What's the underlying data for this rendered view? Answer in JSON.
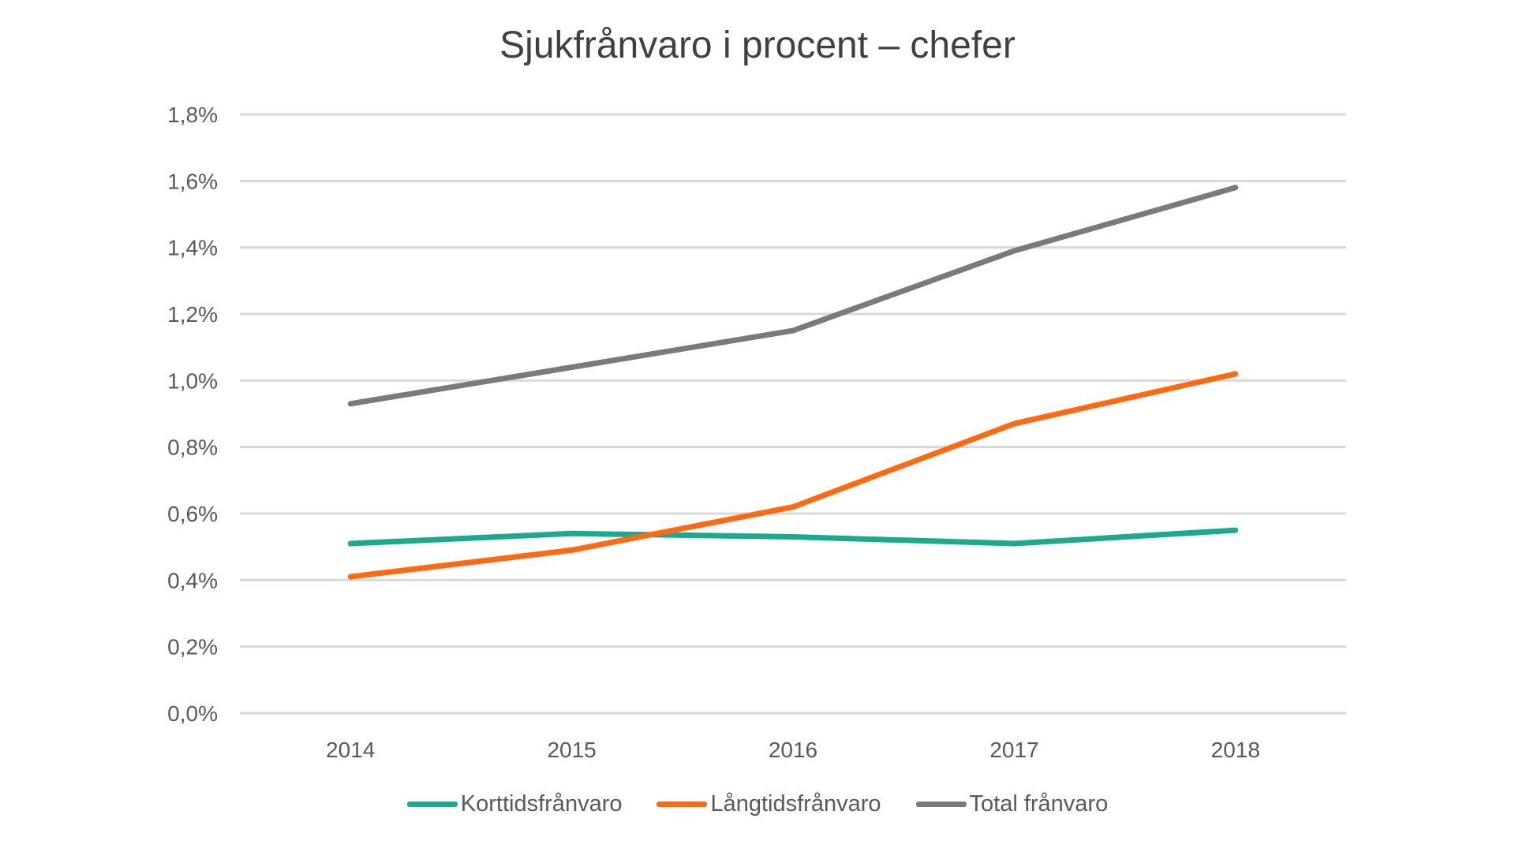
{
  "chart_data": {
    "type": "line",
    "title": "Sjukfrånvaro i procent – chefer",
    "xlabel": "",
    "ylabel": "",
    "categories": [
      "2014",
      "2015",
      "2016",
      "2017",
      "2018"
    ],
    "ylim": [
      0,
      1.8
    ],
    "yticks": [
      0,
      0.2,
      0.4,
      0.6,
      0.8,
      1.0,
      1.2,
      1.4,
      1.6,
      1.8
    ],
    "ytick_labels": [
      "0,0%",
      "0,2%",
      "0,4%",
      "0,6%",
      "0,8%",
      "1,0%",
      "1,2%",
      "1,4%",
      "1,6%",
      "1,8%"
    ],
    "grid": true,
    "legend_position": "bottom",
    "series": [
      {
        "name": "Korttidsfrånvaro",
        "color": "#1aab8f",
        "values": [
          0.51,
          0.54,
          0.53,
          0.51,
          0.55
        ]
      },
      {
        "name": "Långtidsfrånvaro",
        "color": "#ff6a10",
        "values": [
          0.41,
          0.49,
          0.62,
          0.87,
          1.02
        ]
      },
      {
        "name": "Total frånvaro",
        "color": "#7a7a7a",
        "values": [
          0.93,
          1.04,
          1.15,
          1.39,
          1.58
        ]
      }
    ]
  }
}
